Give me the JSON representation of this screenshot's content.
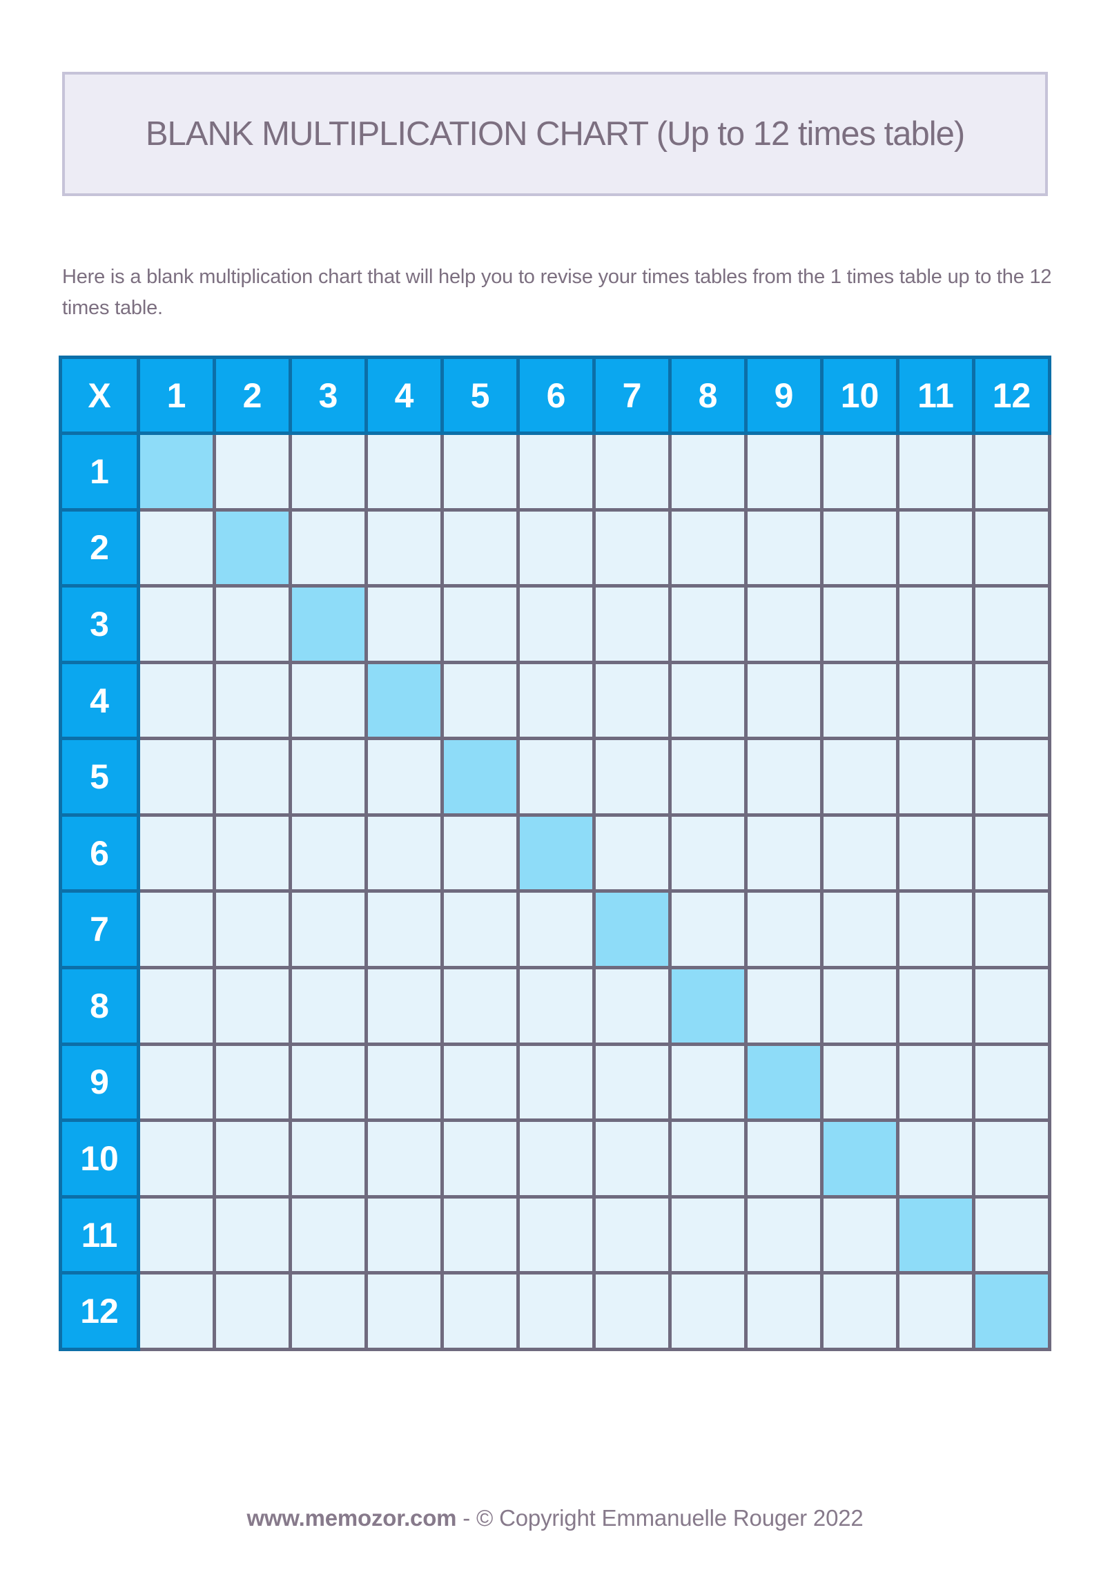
{
  "title_box": {
    "title": "BLANK MULTIPLICATION CHART (Up to 12 times table)"
  },
  "intro": {
    "text": "Here is a blank multiplication chart that will help you to revise your times tables from the 1 times table up to the 12 times table."
  },
  "table": {
    "type": "table",
    "corner_label": "X",
    "column_headers": [
      "1",
      "2",
      "3",
      "4",
      "5",
      "6",
      "7",
      "8",
      "9",
      "10",
      "11",
      "12"
    ],
    "row_headers": [
      "1",
      "2",
      "3",
      "4",
      "5",
      "6",
      "7",
      "8",
      "9",
      "10",
      "11",
      "12"
    ],
    "blank_cell_value": "",
    "highlight": "diagonal"
  },
  "footer": {
    "site": "www.memozor.com",
    "separator": " - ",
    "copyright": "© Copyright Emmanuelle Rouger 2022"
  },
  "colors": {
    "header_blue": "#0ba7ef",
    "header_border": "#0c6fa8",
    "cell_light": "#e5f3fb",
    "cell_highlight": "#8edcf8",
    "grid_border": "#6f6a7e",
    "heading_text": "#7c6f80",
    "title_box_bg": "#edecf5",
    "title_box_border": "#c6c3d8",
    "footer_text": "#877a8b"
  }
}
